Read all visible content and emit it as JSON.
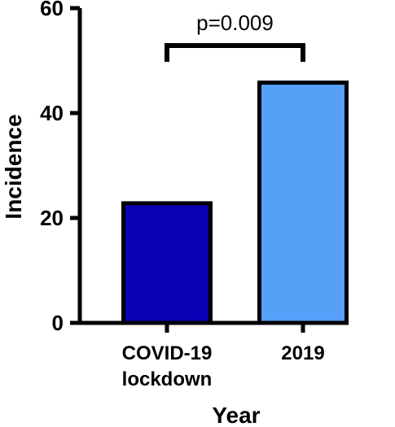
{
  "chart_data": {
    "type": "bar",
    "categories": [
      "COVID-19\nlockdown",
      "2019"
    ],
    "values": [
      22.8,
      45.8
    ],
    "bar_colors": [
      "#0a00b4",
      "#56a0f8"
    ],
    "xlabel": "Year",
    "ylabel": "Incidence",
    "ylim": [
      0,
      60
    ],
    "yticks": [
      "0",
      "20",
      "40",
      "60"
    ],
    "grid": false,
    "annotation": {
      "text": "p=0.009",
      "between": [
        0,
        1
      ]
    }
  }
}
